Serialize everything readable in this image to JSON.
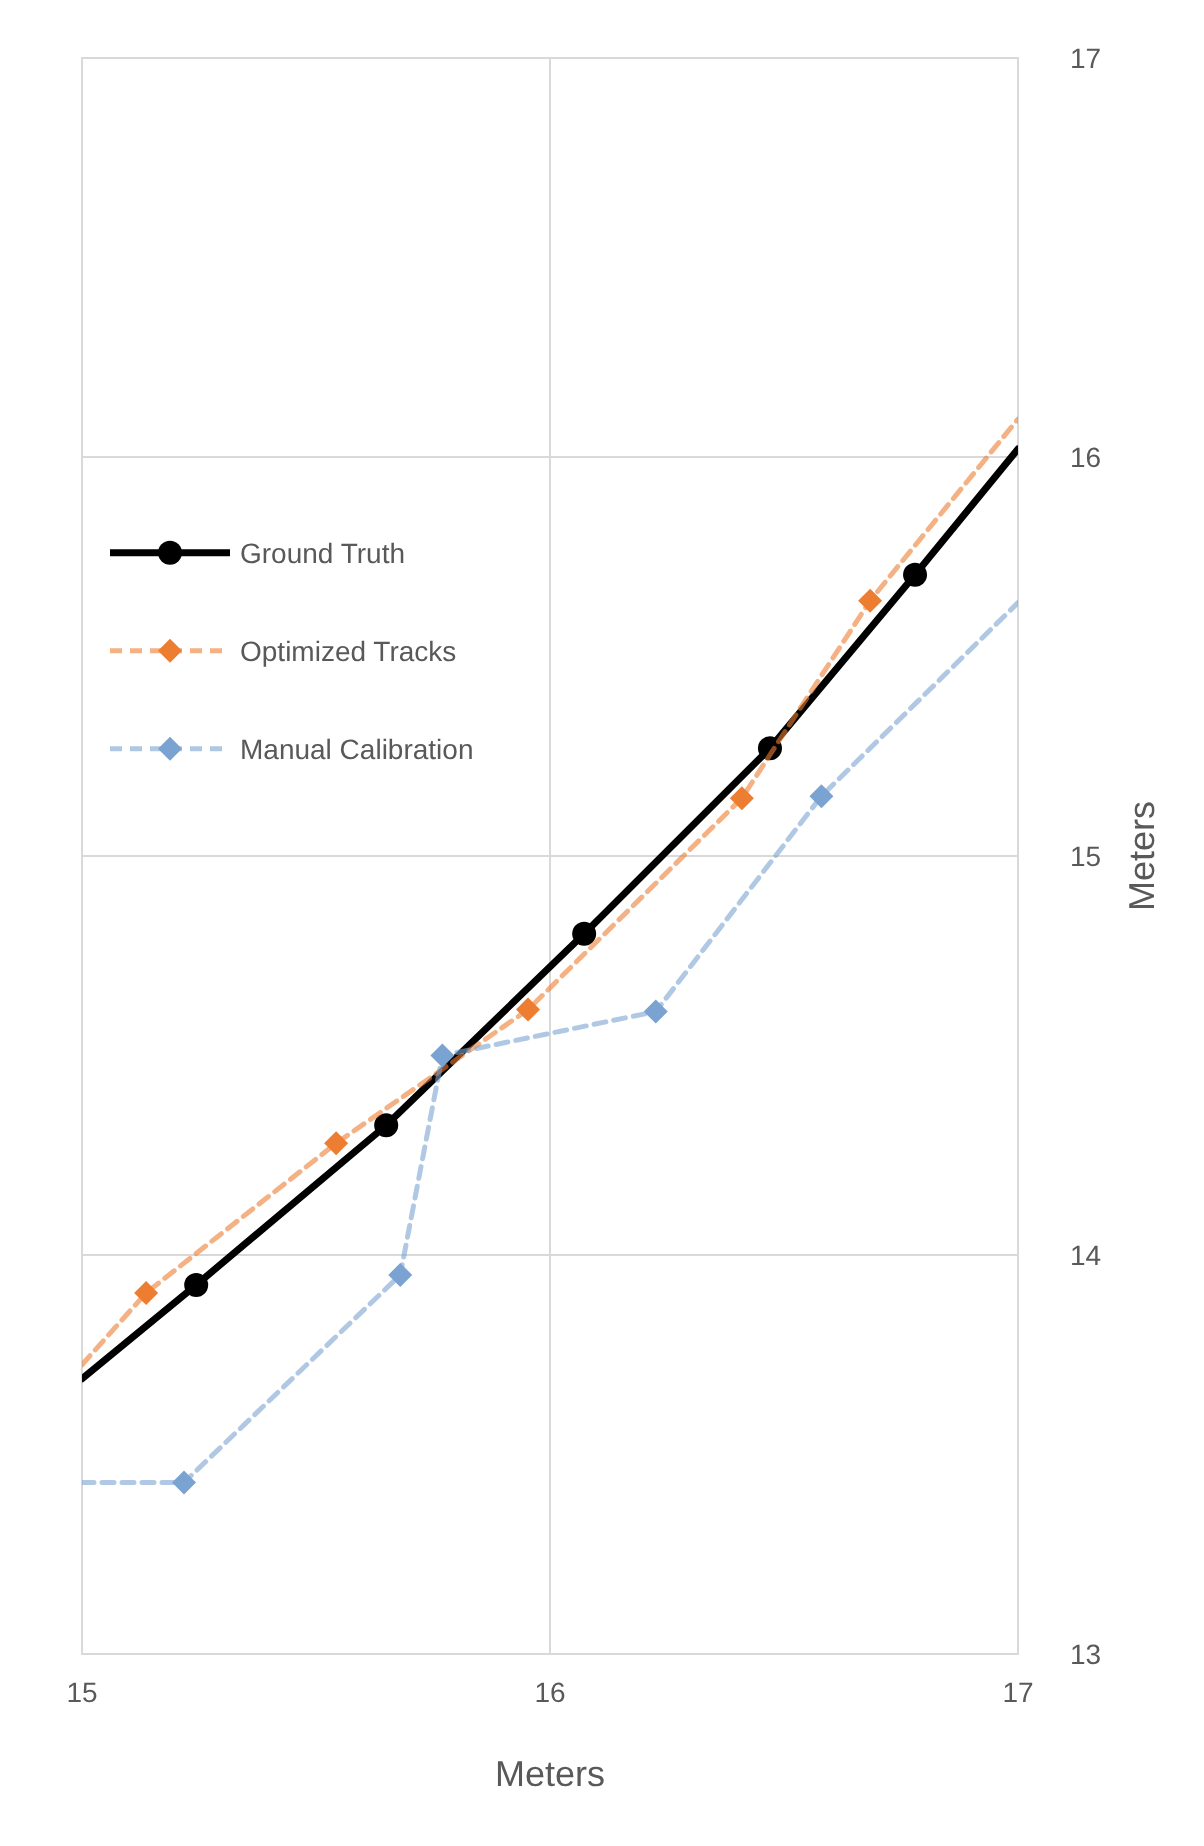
{
  "chart_data": {
    "type": "line",
    "xlabel": "Meters",
    "y2label": "Meters",
    "xlim": [
      15,
      17
    ],
    "xticks": [
      15,
      16,
      17
    ],
    "y2lim": [
      13,
      17
    ],
    "y2ticks": [
      13,
      14,
      15,
      16,
      17
    ],
    "grid": true,
    "legend": "left",
    "series": [
      {
        "name": "Ground Truth",
        "color": "#000000",
        "axis": "y2",
        "marker": "circle",
        "line_style": "solid",
        "x": [
          15,
          15.244,
          15.65,
          16.073,
          16.47,
          16.78,
          17
        ],
        "values": [
          13.69,
          13.925,
          14.325,
          14.805,
          15.27,
          15.705,
          16.02
        ]
      },
      {
        "name": "Optimized Tracks",
        "color": "#ed7d31",
        "axis": "y2",
        "marker": "diamond",
        "line_style": "dashed",
        "x": [
          15,
          15.137,
          15.543,
          15.953,
          16.41,
          16.684,
          17
        ],
        "values": [
          13.725,
          13.905,
          14.28,
          14.615,
          15.145,
          15.64,
          16.095
        ]
      },
      {
        "name": "Manual Calibration",
        "color": "#7ba3d1",
        "axis": "y2",
        "marker": "diamond",
        "line_style": "dashed",
        "x": [
          15,
          15.218,
          15.68,
          15.77,
          16.226,
          16.58,
          17
        ],
        "values": [
          13.43,
          13.43,
          13.95,
          14.5,
          14.61,
          15.15,
          15.635
        ]
      }
    ]
  }
}
